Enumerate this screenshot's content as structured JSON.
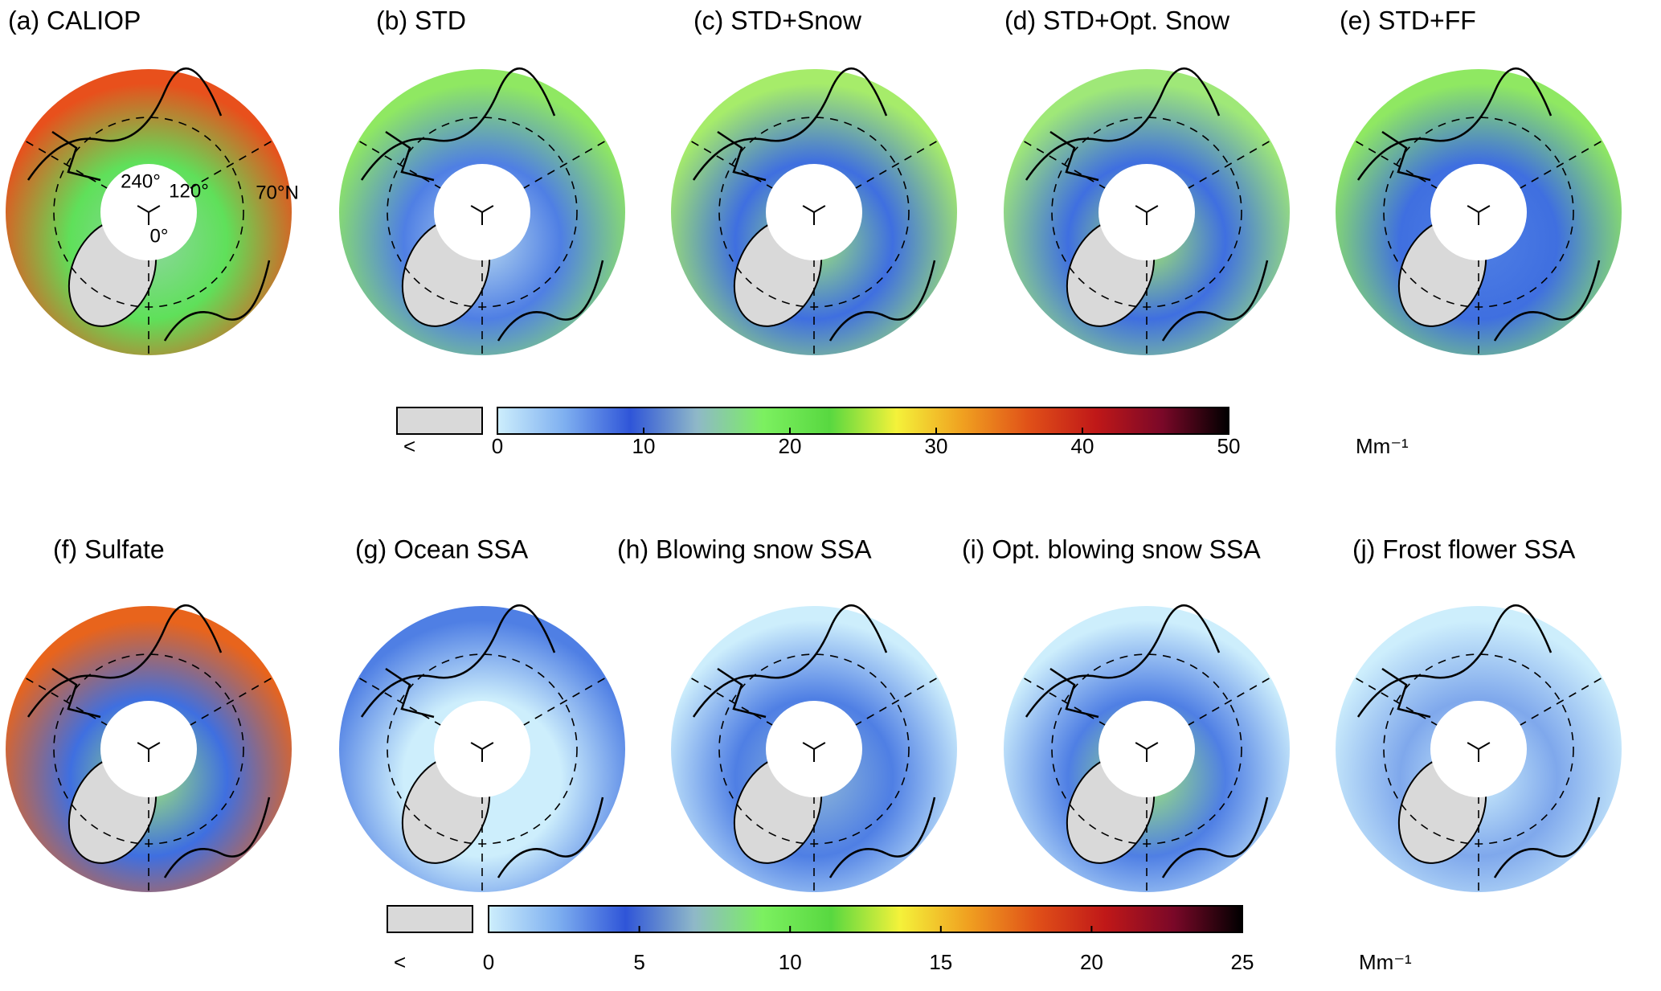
{
  "panels": [
    {
      "label": "(a) CALIOP",
      "colors": [
        "#8fd6a0",
        "#5fe05a",
        "#e8501c"
      ]
    },
    {
      "label": "(b) STD",
      "colors": [
        "#b6d8f0",
        "#4f7fe4",
        "#8fe862"
      ]
    },
    {
      "label": "(c) STD+Snow",
      "colors": [
        "#9fe878",
        "#3f6fe0",
        "#a6ec6a"
      ]
    },
    {
      "label": "(d) STD+Opt. Snow",
      "colors": [
        "#a6ec6a",
        "#3f6fe0",
        "#9fe878"
      ]
    },
    {
      "label": "(e) STD+FF",
      "colors": [
        "#4f7fe4",
        "#3f6fe0",
        "#8fe862"
      ]
    },
    {
      "label": "(f) Sulfate",
      "colors": [
        "#9fe878",
        "#3f6fe0",
        "#e8641c"
      ]
    },
    {
      "label": "(g) Ocean SSA",
      "colors": [
        "#cdeefc",
        "#cdeefc",
        "#4f7fe4"
      ]
    },
    {
      "label": "(h) Blowing snow SSA",
      "colors": [
        "#8fb8d8",
        "#4f7fe4",
        "#cdeefc"
      ]
    },
    {
      "label": "(i) Opt. blowing snow SSA",
      "colors": [
        "#9fe878",
        "#4f7fe4",
        "#cdeefc"
      ]
    },
    {
      "label": "(j) Frost flower SSA",
      "colors": [
        "#cdeefc",
        "#7fa8ec",
        "#cdeefc"
      ]
    }
  ],
  "annotations": {
    "lon_240": "240°",
    "lon_120": "120°",
    "lat_70": "70°N",
    "lon_0": "0°"
  },
  "colormap": [
    "#cdeefc",
    "#7fb0f0",
    "#2f55d8",
    "#8fb8c8",
    "#7cf060",
    "#58d840",
    "#f4f23a",
    "#f0a020",
    "#e05018",
    "#c01818",
    "#7a0828",
    "#000000"
  ],
  "under_color": "#d9d9d9",
  "colorbars": [
    {
      "lim": [
        0,
        50
      ],
      "ticks": [
        0,
        10,
        20,
        30,
        40,
        50
      ],
      "unit": "Mm⁻¹",
      "under_label": "<"
    },
    {
      "lim": [
        0,
        25
      ],
      "ticks": [
        0,
        5,
        10,
        15,
        20,
        25
      ],
      "unit": "Mm⁻¹",
      "under_label": "<"
    }
  ]
}
